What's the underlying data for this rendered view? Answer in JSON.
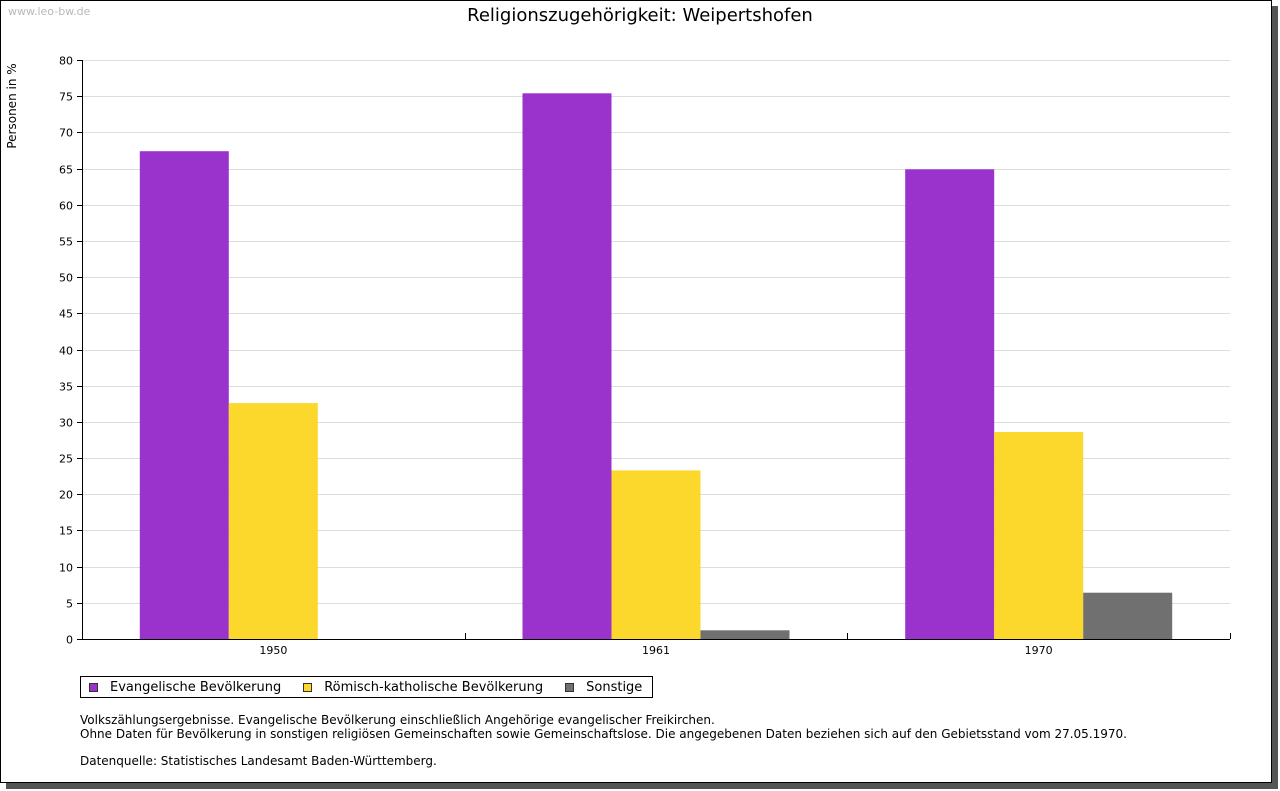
{
  "watermark": "www.leo-bw.de",
  "notes": {
    "line1": "Volkszählungsergebnisse. Evangelische Bevölkerung einschließlich Angehörige evangelischer Freikirchen.",
    "line2": "Ohne Daten für Bevölkerung in sonstigen religiösen Gemeinschaften sowie Gemeinschaftslose. Die angegebenen Daten beziehen sich auf den Gebietsstand vom 27.05.1970.",
    "source": "Datenquelle: Statistisches Landesamt Baden-Württemberg."
  },
  "chart_data": {
    "type": "bar",
    "title": "Religionszugehörigkeit: Weipertshofen",
    "xlabel": "",
    "ylabel": "Personen in %",
    "ylim": [
      0,
      80
    ],
    "yticks": [
      0,
      5,
      10,
      15,
      20,
      25,
      30,
      35,
      40,
      45,
      50,
      55,
      60,
      65,
      70,
      75,
      80
    ],
    "grid": true,
    "legend_position": "bottom-left",
    "categories": [
      "1950",
      "1961",
      "1970"
    ],
    "series": [
      {
        "name": "Evangelische Bevölkerung",
        "color": "#9933cc",
        "values": [
          67.4,
          75.4,
          64.9
        ]
      },
      {
        "name": "Römisch-katholische Bevölkerung",
        "color": "#fcd72c",
        "values": [
          32.6,
          23.3,
          28.6
        ]
      },
      {
        "name": "Sonstige",
        "color": "#707070",
        "values": [
          0,
          1.2,
          6.4
        ]
      }
    ]
  }
}
